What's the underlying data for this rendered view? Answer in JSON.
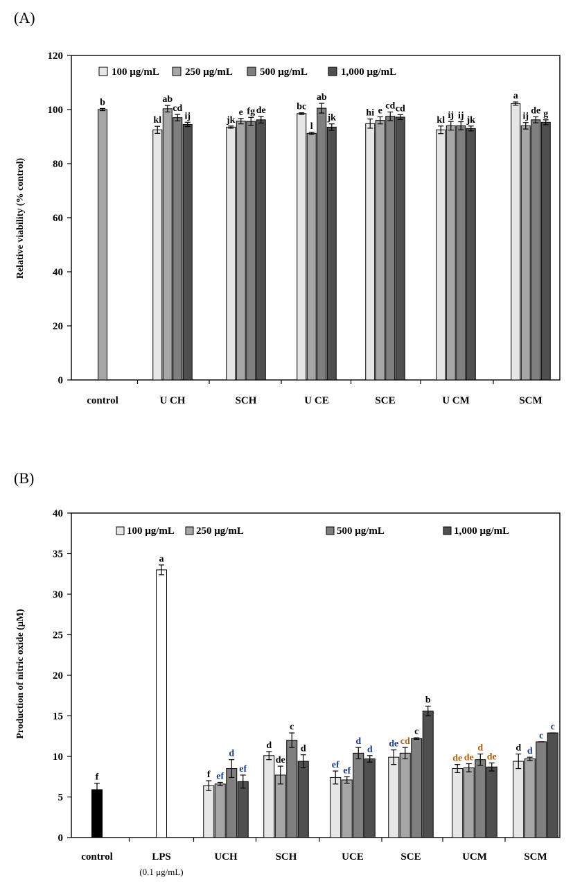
{
  "colors": {
    "s100": "#e6e6e6",
    "s250": "#a6a6a6",
    "s500": "#7f7f7f",
    "s1000": "#4f4f4f",
    "control_B": "#000000",
    "lps": "#ffffff",
    "letter_blue": "#1f3a93",
    "letter_orange": "#b8620a"
  },
  "chart_data": [
    {
      "panel": "(A)",
      "type": "bar",
      "ylabel": "Relative viability (% control)",
      "ylim": [
        0,
        120
      ],
      "yticks": [
        "0",
        "20",
        "40",
        "60",
        "80",
        "100",
        "120"
      ],
      "legend": [
        "100  μg/mL",
        "250  μg/mL",
        "500  μg/mL",
        "1,000  μg/mL"
      ],
      "legend_position": "top",
      "categories": [
        {
          "label": "control",
          "bars": [
            {
              "value": 100.0,
              "err": 0.4,
              "series": 1,
              "letter": "b"
            }
          ]
        },
        {
          "label": "U CH",
          "bars": [
            {
              "value": 92.5,
              "err": 1.3,
              "series": 0,
              "letter": "kl"
            },
            {
              "value": 100.3,
              "err": 1.2,
              "series": 1,
              "letter": "ab"
            },
            {
              "value": 97.0,
              "err": 1.2,
              "series": 2,
              "letter": "cd"
            },
            {
              "value": 94.5,
              "err": 0.8,
              "series": 3,
              "letter": "ij"
            }
          ]
        },
        {
          "label": "SCH",
          "bars": [
            {
              "value": 93.5,
              "err": 0.4,
              "series": 0,
              "letter": "jk"
            },
            {
              "value": 95.7,
              "err": 1.0,
              "series": 1,
              "letter": "e"
            },
            {
              "value": 95.6,
              "err": 1.5,
              "series": 2,
              "letter": "fg"
            },
            {
              "value": 96.2,
              "err": 1.2,
              "series": 3,
              "letter": "de"
            }
          ]
        },
        {
          "label": "U CE",
          "bars": [
            {
              "value": 98.5,
              "err": 0.3,
              "series": 0,
              "letter": "bc"
            },
            {
              "value": 91.2,
              "err": 0.4,
              "series": 1,
              "letter": "l"
            },
            {
              "value": 100.5,
              "err": 1.8,
              "series": 2,
              "letter": "ab"
            },
            {
              "value": 93.5,
              "err": 1.2,
              "series": 3,
              "letter": "jk"
            }
          ]
        },
        {
          "label": "SCE",
          "bars": [
            {
              "value": 94.8,
              "err": 1.7,
              "series": 0,
              "letter": "hi"
            },
            {
              "value": 96.0,
              "err": 1.3,
              "series": 1,
              "letter": "e"
            },
            {
              "value": 97.5,
              "err": 1.6,
              "series": 2,
              "letter": "cd"
            },
            {
              "value": 97.2,
              "err": 0.9,
              "series": 3,
              "letter": "cd"
            }
          ]
        },
        {
          "label": "U CM",
          "bars": [
            {
              "value": 92.5,
              "err": 1.4,
              "series": 0,
              "letter": "kl"
            },
            {
              "value": 94.0,
              "err": 1.6,
              "series": 1,
              "letter": "ij"
            },
            {
              "value": 94.0,
              "err": 1.5,
              "series": 2,
              "letter": "ij"
            },
            {
              "value": 93.0,
              "err": 0.9,
              "series": 3,
              "letter": "jk"
            }
          ]
        },
        {
          "label": "SCM",
          "bars": [
            {
              "value": 102.2,
              "err": 0.6,
              "series": 0,
              "letter": "a"
            },
            {
              "value": 94.0,
              "err": 1.2,
              "series": 1,
              "letter": "ij"
            },
            {
              "value": 96.2,
              "err": 1.1,
              "series": 2,
              "letter": "de"
            },
            {
              "value": 95.3,
              "err": 0.9,
              "series": 3,
              "letter": "g"
            }
          ]
        }
      ]
    },
    {
      "panel": "(B)",
      "type": "bar",
      "ylabel": "Production  of nitric  oxide  (μM)",
      "ylim": [
        0,
        40
      ],
      "yticks": [
        "0",
        "5",
        "10",
        "15",
        "20",
        "25",
        "30",
        "35",
        "40"
      ],
      "legend": [
        "100 μg/mL",
        "250 μg/mL",
        "500 μg/mL",
        "1,000 μg/mL"
      ],
      "legend_position": "top",
      "categories": [
        {
          "label": "control",
          "bars": [
            {
              "value": 5.9,
              "err": 0.8,
              "series": "control",
              "letter": "f"
            }
          ]
        },
        {
          "label": "LPS",
          "sublabel": "(0.1 μg/mL)",
          "bars": [
            {
              "value": 33.0,
              "err": 0.6,
              "series": "lps",
              "letter": "a"
            }
          ]
        },
        {
          "label": "UCH",
          "bars": [
            {
              "value": 6.4,
              "err": 0.6,
              "series": 0,
              "letter": "f"
            },
            {
              "value": 6.6,
              "err": 0.2,
              "series": 1,
              "letter": "ef"
            },
            {
              "value": 8.5,
              "err": 1.1,
              "series": 2,
              "letter": "d"
            },
            {
              "value": 6.9,
              "err": 0.8,
              "series": 3,
              "letter": "ef"
            }
          ]
        },
        {
          "label": "SCH",
          "bars": [
            {
              "value": 10.1,
              "err": 0.5,
              "series": 0,
              "letter": "d"
            },
            {
              "value": 7.7,
              "err": 1.1,
              "series": 1,
              "letter": "de"
            },
            {
              "value": 12.0,
              "err": 0.9,
              "series": 2,
              "letter": "c"
            },
            {
              "value": 9.4,
              "err": 0.8,
              "series": 3,
              "letter": "d"
            }
          ]
        },
        {
          "label": "UCE",
          "bars": [
            {
              "value": 7.4,
              "err": 0.8,
              "series": 0,
              "letter": "ef"
            },
            {
              "value": 7.1,
              "err": 0.4,
              "series": 1,
              "letter": "ef"
            },
            {
              "value": 10.4,
              "err": 0.7,
              "series": 2,
              "letter": "d"
            },
            {
              "value": 9.7,
              "err": 0.4,
              "series": 3,
              "letter": "d"
            }
          ]
        },
        {
          "label": "SCE",
          "bars": [
            {
              "value": 9.9,
              "err": 0.9,
              "series": 0,
              "letter": "de"
            },
            {
              "value": 10.4,
              "err": 0.7,
              "series": 1,
              "letter": "cd"
            },
            {
              "value": 12.2,
              "err": 0.1,
              "series": 2,
              "letter": "c"
            },
            {
              "value": 15.6,
              "err": 0.6,
              "series": 3,
              "letter": "b"
            }
          ]
        },
        {
          "label": "UCM",
          "bars": [
            {
              "value": 8.5,
              "err": 0.5,
              "series": 0,
              "letter": "de"
            },
            {
              "value": 8.6,
              "err": 0.5,
              "series": 1,
              "letter": "de"
            },
            {
              "value": 9.6,
              "err": 0.7,
              "series": 2,
              "letter": "d"
            },
            {
              "value": 8.7,
              "err": 0.5,
              "series": 3,
              "letter": "de"
            }
          ]
        },
        {
          "label": "SCM",
          "bars": [
            {
              "value": 9.4,
              "err": 0.9,
              "series": 0,
              "letter": "d"
            },
            {
              "value": 9.7,
              "err": 0.2,
              "series": 1,
              "letter": "d"
            },
            {
              "value": 11.8,
              "err": 0.0,
              "series": 2,
              "letter": "c"
            },
            {
              "value": 12.9,
              "err": 0.0,
              "series": 3,
              "letter": "c"
            }
          ]
        }
      ]
    }
  ]
}
